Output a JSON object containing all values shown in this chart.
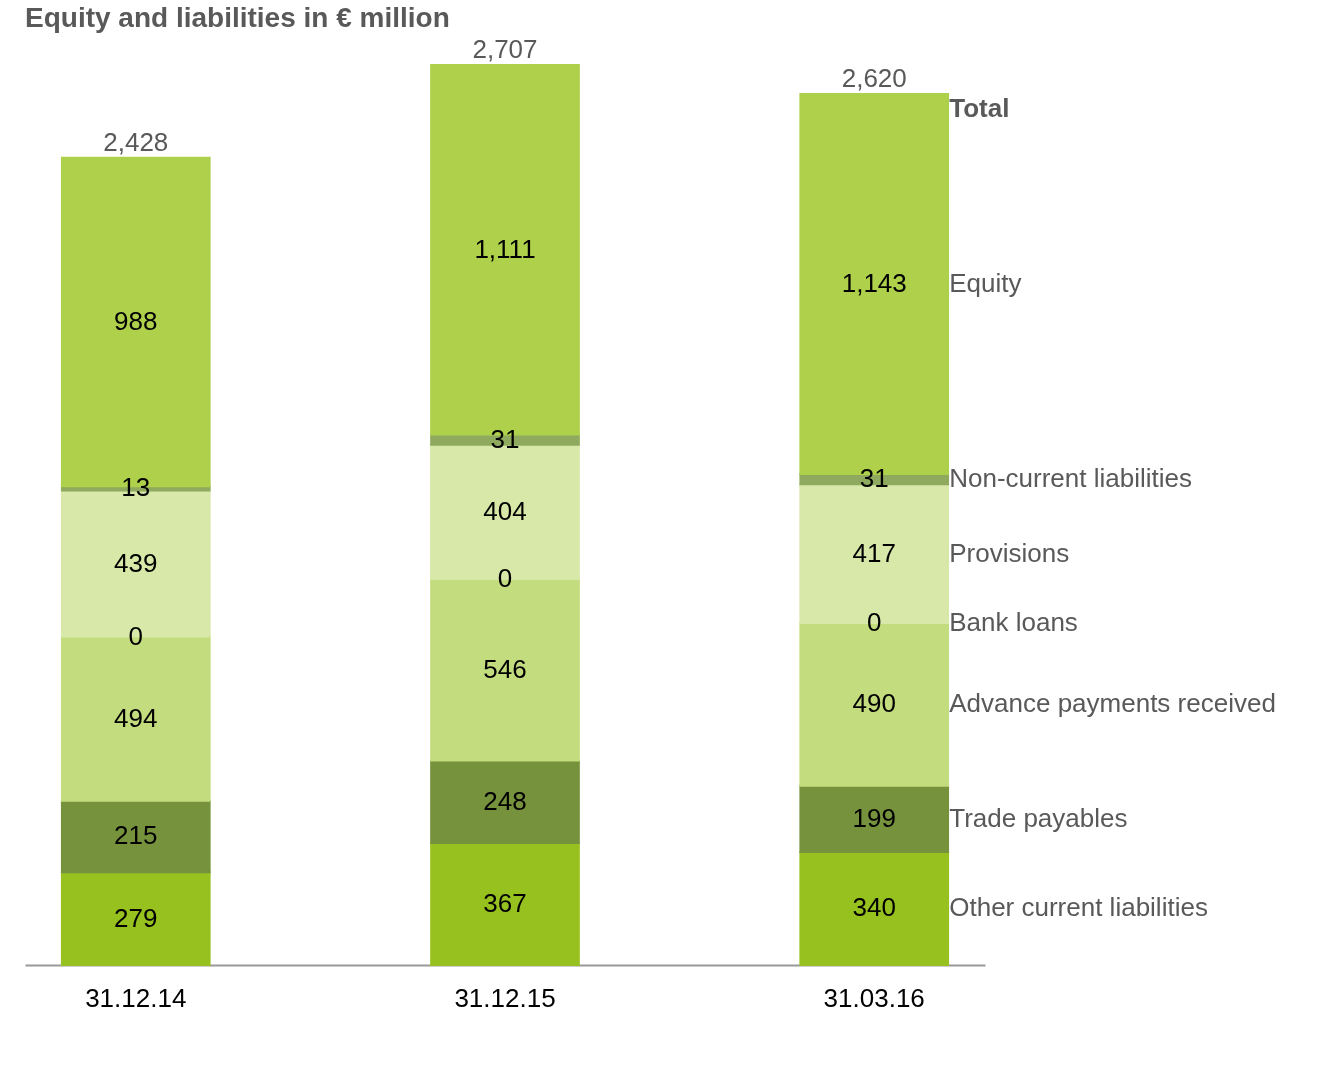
{
  "chart_data": {
    "type": "bar",
    "stacked": true,
    "title": "Equity and liabilities in € million",
    "categories": [
      "31.12.14",
      "31.12.15",
      "31.03.16"
    ],
    "series": [
      {
        "name": "Other current liabilities",
        "color": "#97c11f",
        "values": [
          279,
          367,
          340
        ],
        "value_labels": [
          "279",
          "367",
          "340"
        ]
      },
      {
        "name": "Trade payables",
        "color": "#76923c",
        "values": [
          215,
          248,
          199
        ],
        "value_labels": [
          "215",
          "248",
          "199"
        ]
      },
      {
        "name": "Advance payments received",
        "color": "#c3dc7d",
        "values": [
          494,
          546,
          490
        ],
        "value_labels": [
          "494",
          "546",
          "490"
        ]
      },
      {
        "name": "Bank loans",
        "color": "#c3dc7d",
        "values": [
          0,
          0,
          0
        ],
        "value_labels": [
          "0",
          "0",
          "0"
        ]
      },
      {
        "name": "Provisions",
        "color": "#d7e8a8",
        "values": [
          439,
          404,
          417
        ],
        "value_labels": [
          "439",
          "404",
          "417"
        ]
      },
      {
        "name": "Non-current liabilities",
        "color": "#8faa5e",
        "values": [
          13,
          31,
          31
        ],
        "value_labels": [
          "13",
          "31",
          "31"
        ]
      },
      {
        "name": "Equity",
        "color": "#aed04b",
        "values": [
          988,
          1111,
          1143
        ],
        "value_labels": [
          "988",
          "1,111",
          "1,143"
        ]
      }
    ],
    "totals": [
      "2,428",
      "2,707",
      "2,620"
    ],
    "annotations": [
      {
        "text": "Total",
        "x": "31.03.16",
        "y": 2620
      }
    ]
  }
}
